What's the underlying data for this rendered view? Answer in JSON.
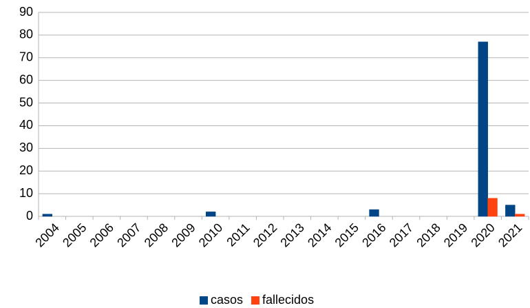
{
  "chart_data": {
    "type": "bar",
    "categories": [
      "2004",
      "2005",
      "2006",
      "2007",
      "2008",
      "2009",
      "2010",
      "2011",
      "2012",
      "2013",
      "2014",
      "2015",
      "2016",
      "2017",
      "2018",
      "2019",
      "2020",
      "2021"
    ],
    "series": [
      {
        "name": "casos",
        "color": "#004586",
        "values": [
          1,
          0,
          0,
          0,
          0,
          0,
          2,
          0,
          0,
          0,
          0,
          0,
          3,
          0,
          0,
          0,
          77,
          5
        ]
      },
      {
        "name": "fallecidos",
        "color": "#ff420e",
        "values": [
          0,
          0,
          0,
          0,
          0,
          0,
          0,
          0,
          0,
          0,
          0,
          0,
          0,
          0,
          0,
          0,
          8,
          1
        ]
      }
    ],
    "ylim": [
      0,
      90
    ],
    "yticks": [
      0,
      10,
      20,
      30,
      40,
      50,
      60,
      70,
      80,
      90
    ],
    "grid": true,
    "legend": "bottom"
  }
}
